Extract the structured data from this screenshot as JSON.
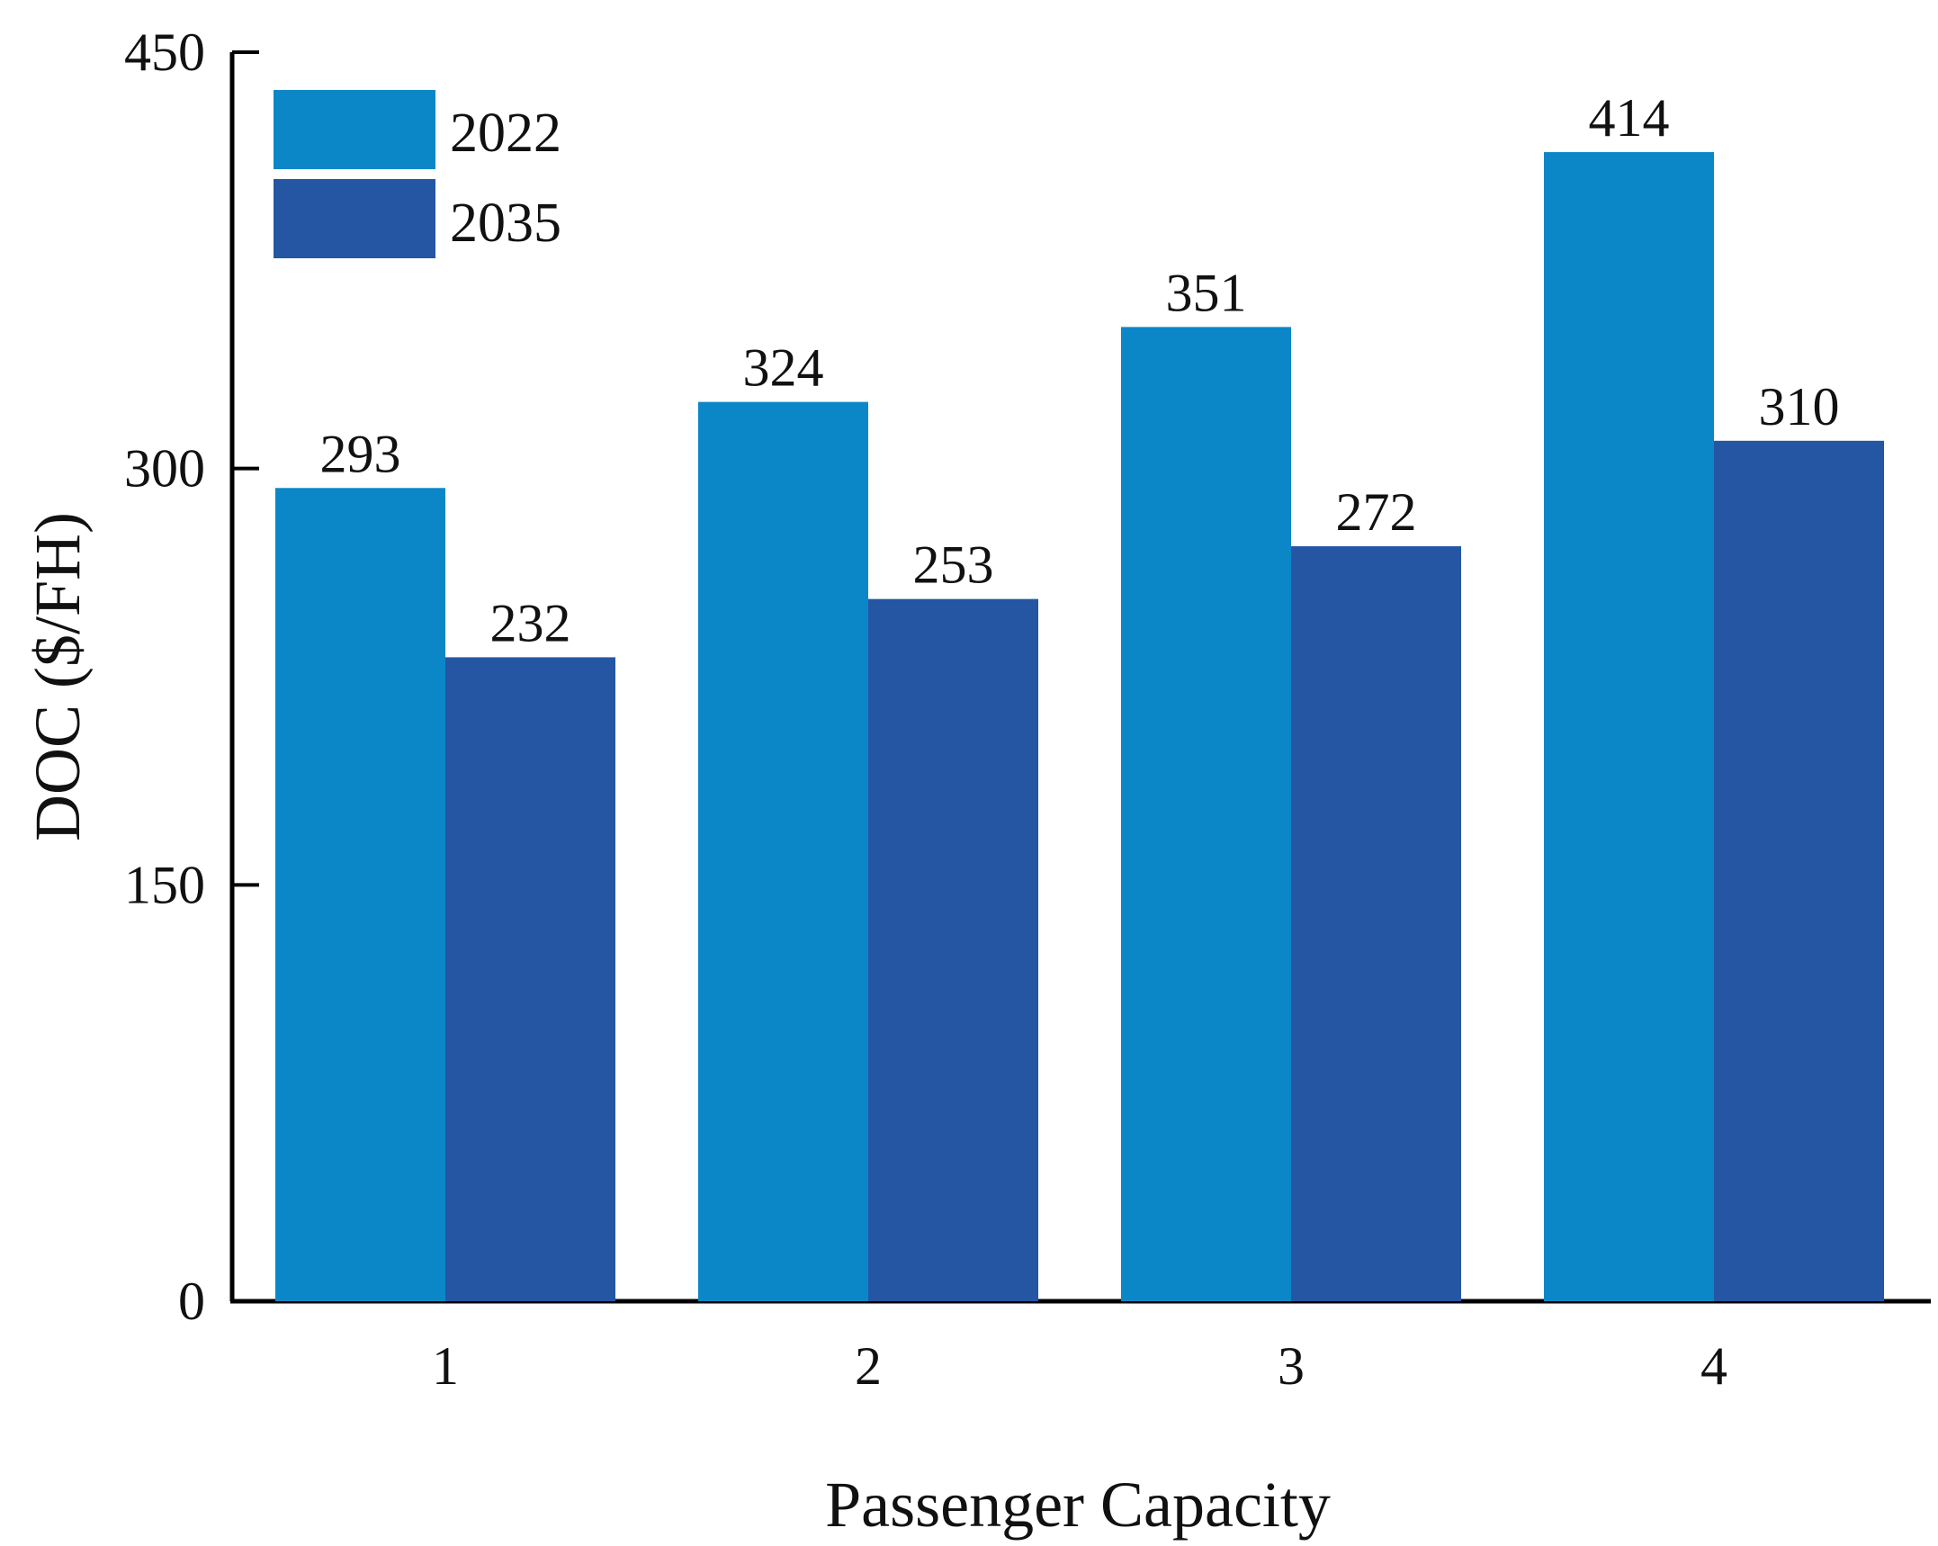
{
  "chart_data": {
    "type": "bar",
    "title": "",
    "xlabel": "Passenger Capacity",
    "ylabel": "DOC ($/FH)",
    "categories": [
      "1",
      "2",
      "3",
      "4"
    ],
    "series": [
      {
        "name": "2022",
        "color": "#0b87c7",
        "values": [
          293,
          324,
          351,
          414
        ],
        "labels": [
          "293",
          "324",
          "351",
          "414"
        ]
      },
      {
        "name": "2035",
        "color": "#2456a3",
        "values": [
          232,
          253,
          272,
          310
        ],
        "labels": [
          "232",
          "253",
          "272",
          "310"
        ]
      }
    ],
    "ylim": [
      0,
      450
    ],
    "yticks": [
      0,
      150,
      300,
      450
    ],
    "ytick_labels": [
      "0",
      "150",
      "300",
      "450"
    ],
    "legend": {
      "position": "top-left",
      "entries": [
        "2022",
        "2035"
      ]
    },
    "grid": false
  }
}
